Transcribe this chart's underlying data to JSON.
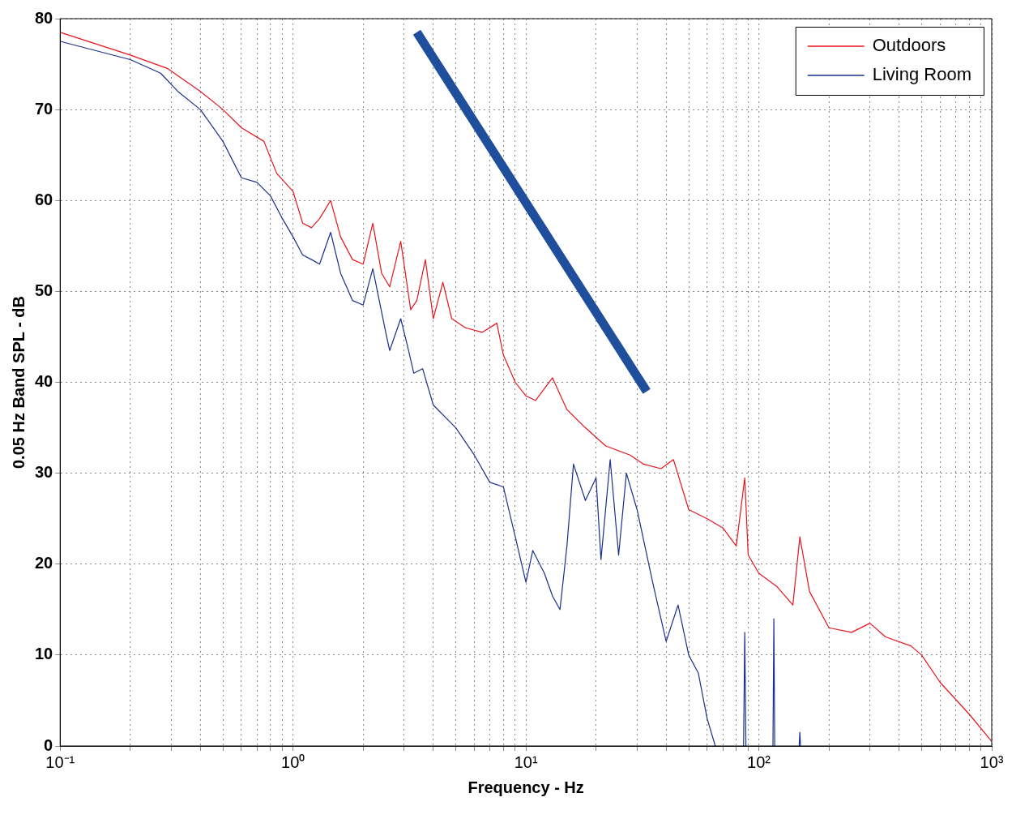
{
  "chart_data": {
    "type": "line",
    "xlabel": "Frequency - Hz",
    "ylabel": "0.05 Hz Band SPL - dB",
    "log": "x",
    "grid": true,
    "legend": "top right",
    "marker": "none",
    "line_style": "solid",
    "xlim": [
      0.1,
      1000
    ],
    "ylim": [
      0,
      80
    ],
    "xticks": [
      {
        "value": 0.1,
        "label": "10⁻¹"
      },
      {
        "value": 0.2,
        "label": null
      },
      {
        "value": 0.3,
        "label": null
      },
      {
        "value": 0.4,
        "label": null
      },
      {
        "value": 0.5,
        "label": null
      },
      {
        "value": 0.6,
        "label": null
      },
      {
        "value": 0.7,
        "label": null
      },
      {
        "value": 0.8,
        "label": null
      },
      {
        "value": 0.9,
        "label": null
      },
      {
        "value": 1,
        "label": "10⁰"
      },
      {
        "value": 2,
        "label": null
      },
      {
        "value": 3,
        "label": null
      },
      {
        "value": 4,
        "label": null
      },
      {
        "value": 5,
        "label": null
      },
      {
        "value": 6,
        "label": null
      },
      {
        "value": 7,
        "label": null
      },
      {
        "value": 8,
        "label": null
      },
      {
        "value": 9,
        "label": null
      },
      {
        "value": 10,
        "label": "10¹"
      },
      {
        "value": 20,
        "label": null
      },
      {
        "value": 30,
        "label": null
      },
      {
        "value": 40,
        "label": null
      },
      {
        "value": 50,
        "label": null
      },
      {
        "value": 60,
        "label": null
      },
      {
        "value": 70,
        "label": null
      },
      {
        "value": 80,
        "label": null
      },
      {
        "value": 90,
        "label": null
      },
      {
        "value": 100,
        "label": "10²"
      },
      {
        "value": 200,
        "label": null
      },
      {
        "value": 300,
        "label": null
      },
      {
        "value": 400,
        "label": null
      },
      {
        "value": 500,
        "label": null
      },
      {
        "value": 600,
        "label": null
      },
      {
        "value": 700,
        "label": null
      },
      {
        "value": 800,
        "label": null
      },
      {
        "value": 900,
        "label": null
      },
      {
        "value": 1000,
        "label": "10³"
      }
    ],
    "yticks": [
      0,
      10,
      20,
      30,
      40,
      50,
      60,
      70,
      80
    ],
    "series": [
      {
        "name": "Outdoors",
        "color": "#e8141c",
        "x": [
          0.1,
          0.2,
          0.29,
          0.4,
          0.5,
          0.6,
          0.75,
          0.85,
          1.0,
          1.1,
          1.2,
          1.3,
          1.45,
          1.6,
          1.8,
          2.0,
          2.2,
          2.4,
          2.6,
          2.9,
          3.2,
          3.4,
          3.7,
          4.0,
          4.4,
          4.8,
          5.5,
          6.5,
          7.5,
          8,
          9,
          10,
          11,
          13,
          15,
          18,
          22,
          28,
          32,
          38,
          43,
          50,
          60,
          70,
          80,
          87,
          90,
          100,
          120,
          140,
          150,
          165,
          200,
          250,
          300,
          350,
          450,
          500,
          600,
          800,
          1000
        ],
        "values": [
          78.5,
          76,
          74.5,
          72,
          70,
          68,
          66.5,
          63,
          61,
          57.5,
          57,
          58,
          60,
          56,
          53.5,
          53,
          57.5,
          52,
          50.5,
          55.5,
          48,
          49,
          53.5,
          47,
          51,
          47,
          46,
          45.5,
          46.5,
          43,
          40,
          38.5,
          38,
          40.5,
          37,
          35,
          33,
          32,
          31,
          30.5,
          31.5,
          26,
          25,
          24,
          22,
          29.5,
          21,
          19,
          17.5,
          15.5,
          23,
          17,
          13,
          12.5,
          13.5,
          12,
          11,
          10,
          7,
          3.5,
          0.5
        ]
      },
      {
        "name": "Living Room",
        "color": "#1a2f8c",
        "x": [
          0.1,
          0.2,
          0.27,
          0.32,
          0.4,
          0.5,
          0.6,
          0.7,
          0.8,
          0.9,
          1.0,
          1.1,
          1.2,
          1.3,
          1.45,
          1.6,
          1.8,
          2.0,
          2.2,
          2.5,
          2.6,
          2.9,
          3.1,
          3.3,
          3.6,
          4.0,
          5,
          6,
          7,
          8,
          9,
          10,
          10.7,
          12,
          13,
          14,
          15,
          16,
          18,
          20,
          21,
          23,
          25,
          27,
          30,
          35,
          40,
          45,
          50,
          55,
          60,
          65,
          75,
          86,
          87,
          88,
          100,
          115,
          116,
          117,
          130,
          149,
          150,
          151
        ],
        "values": [
          77.5,
          75.5,
          74,
          72,
          70,
          66.5,
          62.5,
          62,
          60.5,
          58,
          56,
          54,
          53.5,
          53,
          56.5,
          52,
          49,
          48.5,
          52.5,
          45.5,
          43.5,
          47,
          44,
          41,
          41.5,
          37.5,
          35,
          32,
          29,
          28.5,
          23,
          18,
          21.5,
          19,
          16.5,
          15,
          22,
          31,
          27,
          29.5,
          20.5,
          31.5,
          21,
          30,
          26,
          18,
          11.5,
          15.5,
          10,
          8,
          3,
          0,
          null,
          0,
          12.5,
          0,
          null,
          0,
          14,
          0,
          null,
          0,
          1.5,
          0
        ]
      },
      {
        "color": "#1f4e9c",
        "x": [
          3.4,
          33
        ],
        "values": [
          78.5,
          39
        ]
      }
    ]
  }
}
